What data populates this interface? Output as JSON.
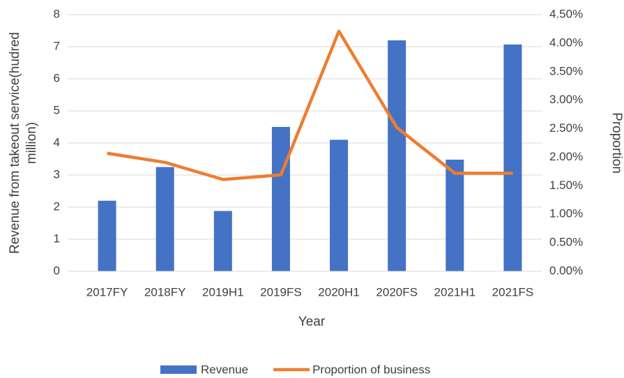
{
  "chart_data": {
    "type": "bar_line",
    "categories": [
      "2017FY",
      "2018FY",
      "2019H1",
      "2019FS",
      "2020H1",
      "2020FS",
      "2021H1",
      "2021FS"
    ],
    "series": [
      {
        "name": "Revenue",
        "type": "bar",
        "color": "#4472c4",
        "values": [
          2.2,
          3.25,
          1.88,
          4.5,
          4.1,
          7.2,
          3.48,
          7.07
        ]
      },
      {
        "name": "Proportion of business",
        "type": "line",
        "axis": "y2",
        "color": "#ed7d31",
        "values": [
          2.07,
          1.91,
          1.61,
          1.69,
          4.21,
          2.52,
          1.72,
          1.72
        ]
      }
    ],
    "xlabel": "Year",
    "ylabel": [
      "Revenue from takeout service(hudred",
      "million)"
    ],
    "y2label": "Proportion",
    "ylim": [
      0,
      8
    ],
    "yticks": [
      0,
      1,
      2,
      3,
      4,
      5,
      6,
      7,
      8
    ],
    "y2lim": [
      0,
      4.5
    ],
    "y2ticks": [
      {
        "value": 0,
        "label": "0.00%"
      },
      {
        "value": 0.5,
        "label": "0.50%"
      },
      {
        "value": 1,
        "label": "1.00%"
      },
      {
        "value": 1.5,
        "label": "1.50%"
      },
      {
        "value": 2,
        "label": "2.00%"
      },
      {
        "value": 2.5,
        "label": "2.50%"
      },
      {
        "value": 3,
        "label": "3.00%"
      },
      {
        "value": 3.5,
        "label": "3.50%"
      },
      {
        "value": 4,
        "label": "4.00%"
      },
      {
        "value": 4.5,
        "label": "4.50%"
      }
    ],
    "grid": true,
    "legend": "bottom"
  }
}
